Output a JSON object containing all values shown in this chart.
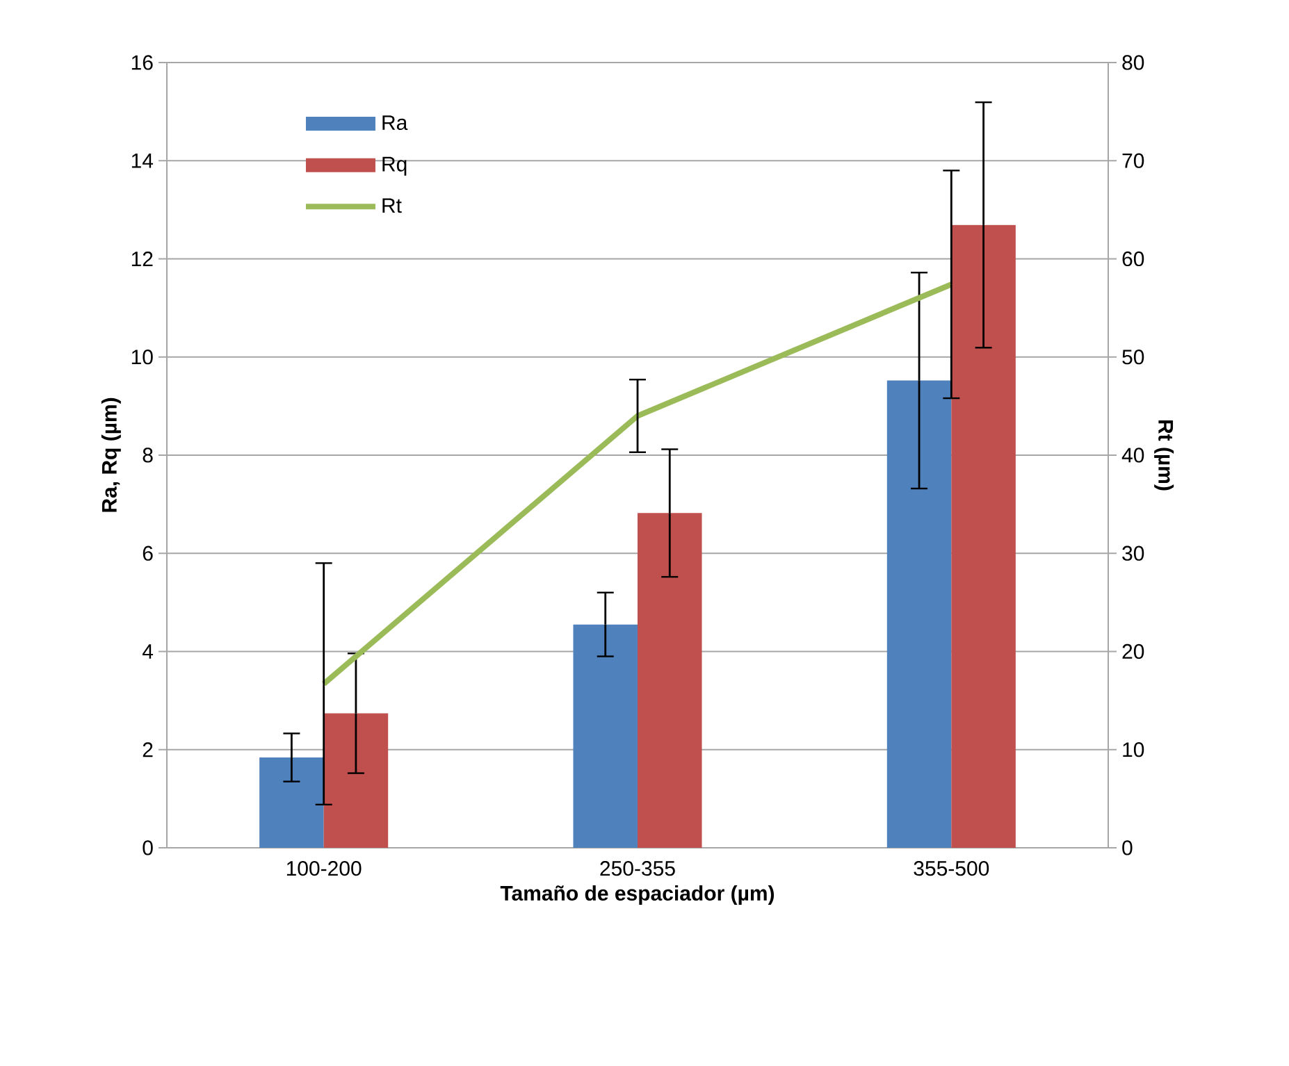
{
  "chart_data": {
    "type": "bar",
    "xlabel": "Tamaño de espaciador  (µm)",
    "ylabel": "Ra, Rq (µm)",
    "y2label": "Rt (µm)",
    "categories": [
      "100-200",
      "250-355",
      "355-500"
    ],
    "series": [
      {
        "name": "Ra",
        "color": "#4f81bd",
        "values": [
          1.84,
          4.55,
          9.52
        ],
        "errors": [
          0.49,
          0.65,
          2.2
        ]
      },
      {
        "name": "Rq",
        "color": "#c0504d",
        "values": [
          2.74,
          6.82,
          12.69
        ],
        "errors": [
          1.22,
          1.3,
          2.5
        ]
      },
      {
        "name": "Rt",
        "type": "line",
        "axis": "y2",
        "color": "#9bbb59",
        "values": [
          16.7,
          44.0,
          57.4
        ],
        "errors": [
          12.3,
          3.7,
          11.6
        ]
      }
    ],
    "ylim": [
      0,
      16
    ],
    "yticks": [
      0,
      2,
      4,
      6,
      8,
      10,
      12,
      14,
      16
    ],
    "y2lim": [
      0,
      80
    ],
    "y2ticks": [
      0,
      10,
      20,
      30,
      40,
      50,
      60,
      70,
      80
    ],
    "grid": "y",
    "legend": "top left"
  }
}
